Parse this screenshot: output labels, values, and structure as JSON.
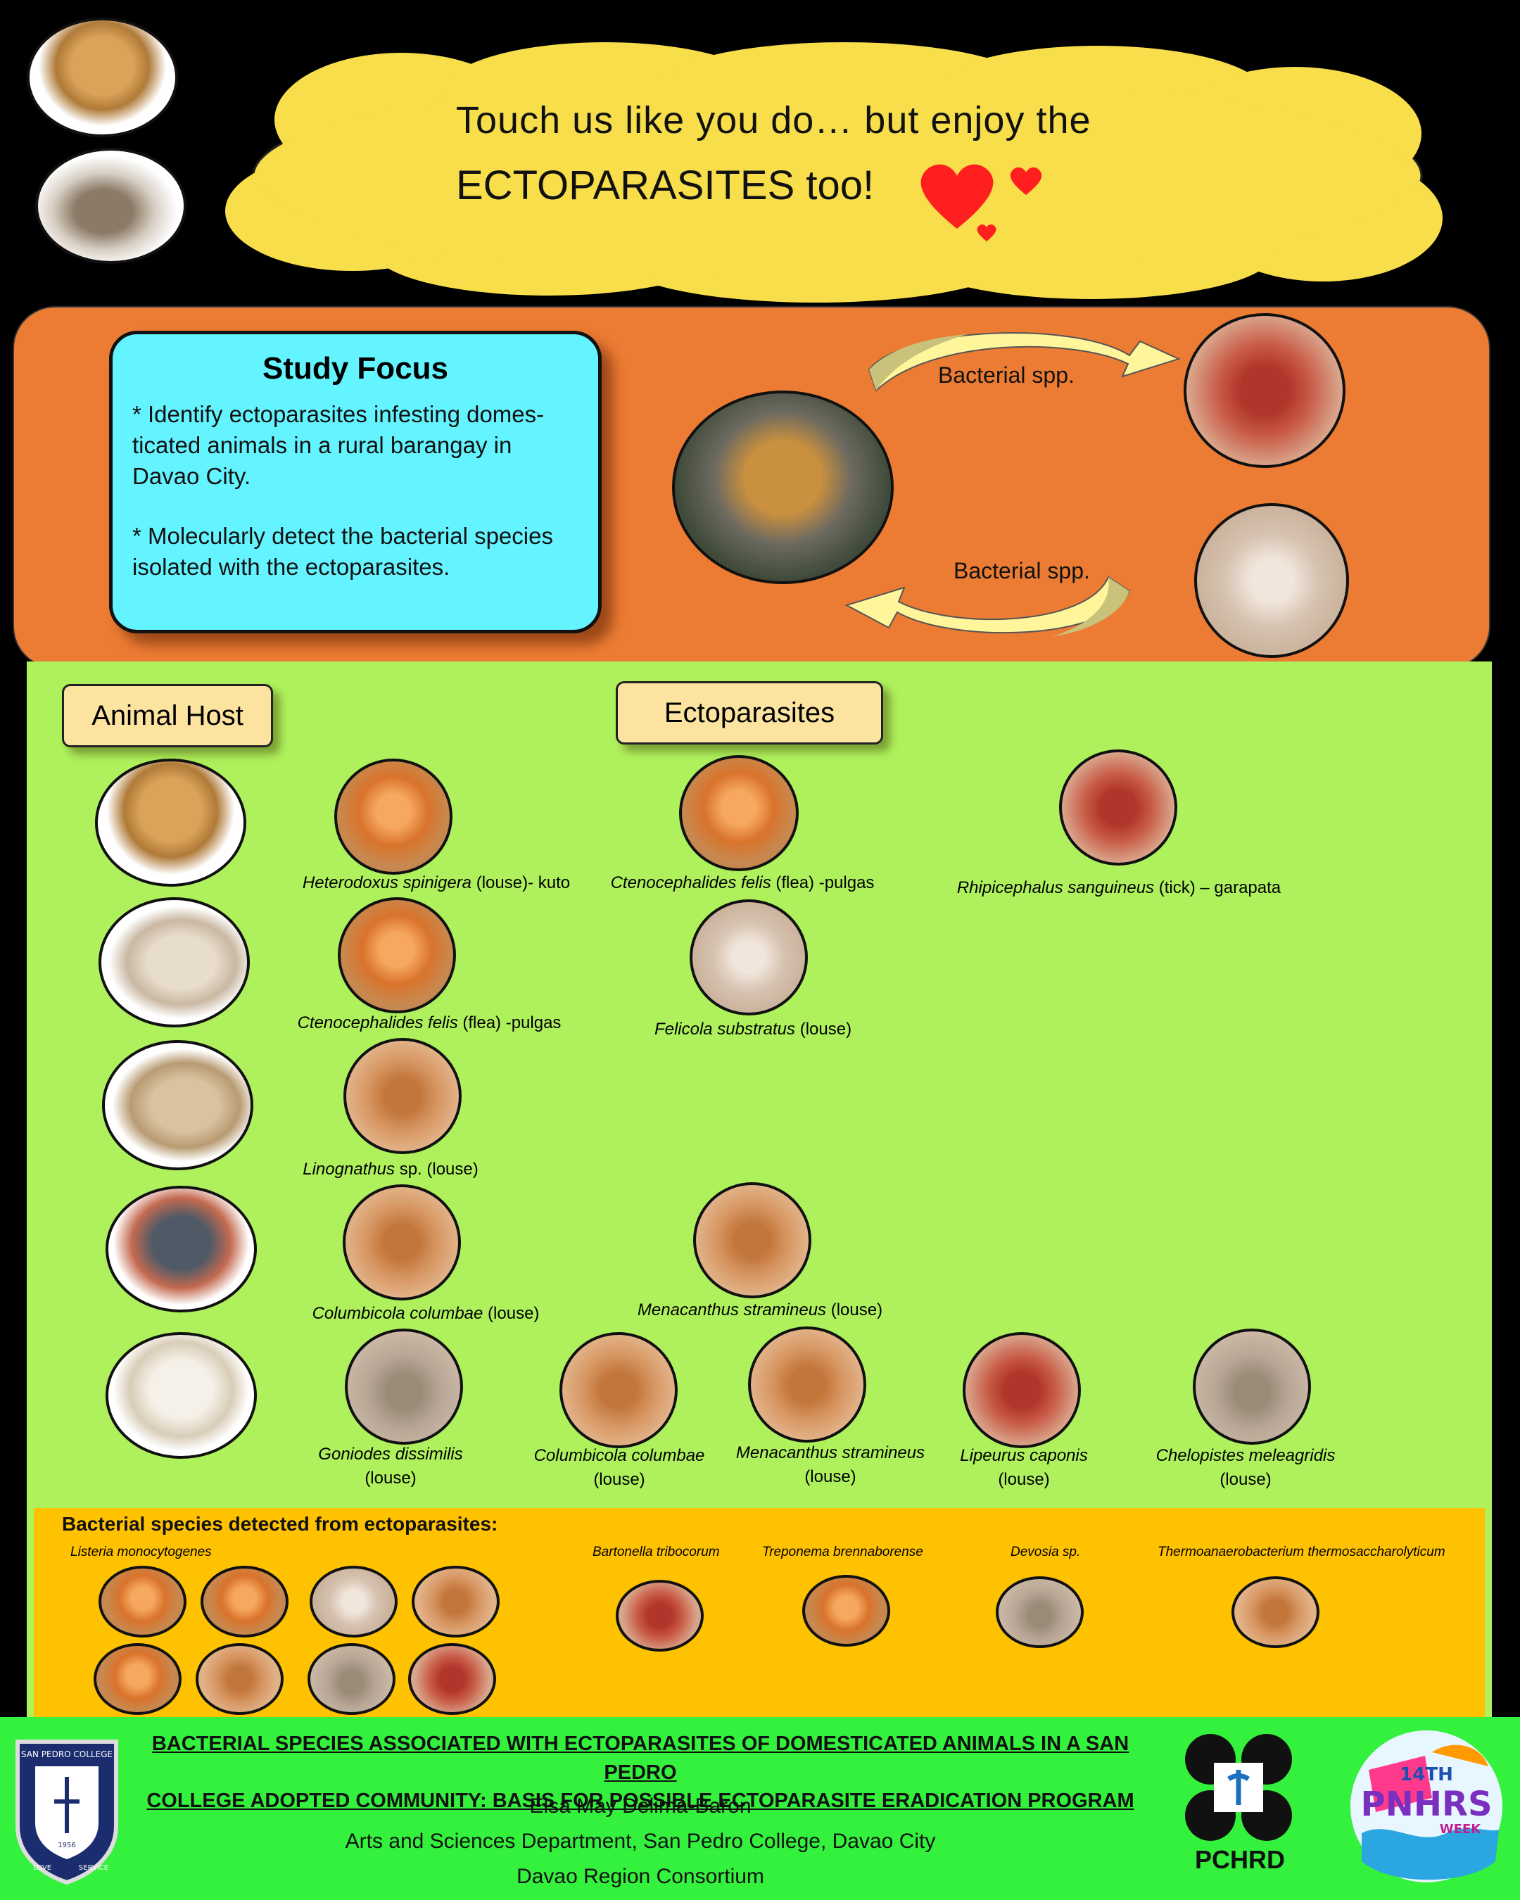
{
  "header": {
    "line1": "Touch us  like you do… but enjoy the",
    "line2": "ECTOPARASITES too!"
  },
  "focus": {
    "title": "Study Focus",
    "point1_line1": "* Identify ectoparasites infesting domes-",
    "point1_line2": "ticated animals in a rural barangay in",
    "point1_line3": "Davao City.",
    "point2_line1": "* Molecularly detect the bacterial species",
    "point2_line2": "isolated with the ectoparasites.",
    "arrow_top_label": "Bacterial spp.",
    "arrow_bottom_label": "Bacterial spp."
  },
  "columns": {
    "animal_host": "Animal Host",
    "ectoparasites": "Ectoparasites"
  },
  "rows": {
    "dog": [
      {
        "sci": "Heterodoxus spinigera",
        "rest": " (louse)- kuto"
      },
      {
        "sci": "Ctenocephalides felis",
        "rest": " (flea) -pulgas"
      },
      {
        "sci": "Rhipicephalus sanguineus",
        "rest": "  (tick) – garapata"
      }
    ],
    "cat": [
      {
        "sci": "Ctenocephalides felis",
        "rest": " (flea) -pulgas"
      },
      {
        "sci": "Felicola substratus",
        "rest": " (louse)"
      }
    ],
    "goat": [
      {
        "sci": "Linognathus",
        "rest": " sp. (louse)"
      }
    ],
    "pigeon": [
      {
        "sci": "Columbicola columbae",
        "rest": " (louse)"
      },
      {
        "sci": "Menacanthus stramineus",
        "rest": " (louse)"
      }
    ],
    "chicken": [
      {
        "sci": "Goniodes dissimilis",
        "rest": "(louse)"
      },
      {
        "sci": "Columbicola columbae",
        "rest": "(louse)"
      },
      {
        "sci": "Menacanthus stramineus",
        "rest": "(louse)"
      },
      {
        "sci": "Lipeurus caponis",
        "rest": "(louse)"
      },
      {
        "sci": "Chelopistes meleagridis",
        "rest": "(louse)"
      }
    ]
  },
  "bacteria": {
    "heading": "Bacterial species detected from ectoparasites:",
    "species": [
      "Listeria monocytogenes",
      "Bartonella tribocorum",
      "Treponema brennaborense",
      "Devosia sp.",
      "Thermoanaerobacterium thermosaccharolyticum"
    ]
  },
  "footer": {
    "title_line1": "BACTERIAL SPECIES ASSOCIATED WITH ECTOPARASITES OF DOMESTICATED ANIMALS IN A SAN  PEDRO",
    "title_line2": "COLLEGE  ADOPTED COMMUNITY: BASIS FOR POSSIBLE ECTOPARASITE ERADICATION PROGRAM",
    "author": "Elsa May Delima-Baron",
    "affiliation": "Arts and Sciences Department, San Pedro College, Davao City",
    "consortium": "Davao Region Consortium",
    "pchrd": "PCHRD",
    "seal_top": "SAN PEDRO COLLEGE",
    "seal_year": "1956",
    "seal_love": "LOVE",
    "seal_service": "SERVICE",
    "pnhrs_top": "14TH",
    "pnhrs_mid": "PNHRS",
    "pnhrs_week": "WEEK"
  },
  "colors": {
    "cloud": "#f7de4a",
    "orange_band": "#ec7c33",
    "focus_box": "#63f4ff",
    "green_panel": "#aef15c",
    "bacteria_panel": "#ffc200",
    "footer": "#33f13c",
    "heart": "#ff1f1f"
  }
}
